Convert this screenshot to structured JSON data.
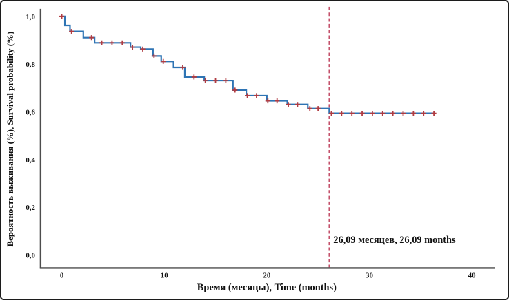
{
  "chart_data": {
    "type": "line",
    "subtype": "kaplan-meier-step",
    "title": "",
    "xlabel": "Время (месяцы), Time (months)",
    "ylabel": "Вероятность выживания (%), Survival probability (%)",
    "xlim": [
      -2.1,
      42.2
    ],
    "ylim": [
      0.0,
      1.05
    ],
    "grid": false,
    "legend": "none",
    "x_ticks": [
      {
        "value": 0,
        "label": "0"
      },
      {
        "value": 10,
        "label": "10"
      },
      {
        "value": 20,
        "label": "20"
      },
      {
        "value": 30,
        "label": "30"
      },
      {
        "value": 40,
        "label": "40"
      }
    ],
    "y_ticks": [
      {
        "value": 0.0,
        "label": "0,0"
      },
      {
        "value": 0.2,
        "label": "0,2"
      },
      {
        "value": 0.4,
        "label": "0,4"
      },
      {
        "value": 0.6,
        "label": "0,6"
      },
      {
        "value": 0.8,
        "label": "0,8"
      },
      {
        "value": 1.0,
        "label": "1,0"
      }
    ],
    "survival_steps": [
      {
        "t": 0.0,
        "p": 1.0
      },
      {
        "t": 0.3,
        "p": 0.962
      },
      {
        "t": 0.8,
        "p": 0.937
      },
      {
        "t": 2.1,
        "p": 0.911
      },
      {
        "t": 3.2,
        "p": 0.889
      },
      {
        "t": 6.7,
        "p": 0.871
      },
      {
        "t": 7.7,
        "p": 0.863
      },
      {
        "t": 8.9,
        "p": 0.834
      },
      {
        "t": 9.7,
        "p": 0.811
      },
      {
        "t": 10.9,
        "p": 0.786
      },
      {
        "t": 12.0,
        "p": 0.746
      },
      {
        "t": 13.9,
        "p": 0.731
      },
      {
        "t": 16.7,
        "p": 0.691
      },
      {
        "t": 18.0,
        "p": 0.668
      },
      {
        "t": 20.0,
        "p": 0.646
      },
      {
        "t": 22.0,
        "p": 0.631
      },
      {
        "t": 24.0,
        "p": 0.614
      },
      {
        "t": 26.09,
        "p": 0.594
      }
    ],
    "end_t": 36.4,
    "censored": [
      {
        "t": 0.0,
        "p": 1.0
      },
      {
        "t": 0.95,
        "p": 0.937
      },
      {
        "t": 2.9,
        "p": 0.911
      },
      {
        "t": 3.9,
        "p": 0.889
      },
      {
        "t": 4.9,
        "p": 0.889
      },
      {
        "t": 5.9,
        "p": 0.889
      },
      {
        "t": 6.9,
        "p": 0.871
      },
      {
        "t": 7.9,
        "p": 0.863
      },
      {
        "t": 9.0,
        "p": 0.834
      },
      {
        "t": 9.9,
        "p": 0.811
      },
      {
        "t": 11.8,
        "p": 0.786
      },
      {
        "t": 12.9,
        "p": 0.746
      },
      {
        "t": 14.0,
        "p": 0.731
      },
      {
        "t": 15.0,
        "p": 0.731
      },
      {
        "t": 16.0,
        "p": 0.731
      },
      {
        "t": 16.9,
        "p": 0.691
      },
      {
        "t": 18.1,
        "p": 0.668
      },
      {
        "t": 19.0,
        "p": 0.668
      },
      {
        "t": 20.1,
        "p": 0.646
      },
      {
        "t": 21.0,
        "p": 0.646
      },
      {
        "t": 22.1,
        "p": 0.631
      },
      {
        "t": 23.0,
        "p": 0.631
      },
      {
        "t": 24.2,
        "p": 0.614
      },
      {
        "t": 25.0,
        "p": 0.614
      },
      {
        "t": 26.3,
        "p": 0.594
      },
      {
        "t": 27.3,
        "p": 0.594
      },
      {
        "t": 28.3,
        "p": 0.594
      },
      {
        "t": 29.3,
        "p": 0.594
      },
      {
        "t": 30.3,
        "p": 0.594
      },
      {
        "t": 31.3,
        "p": 0.594
      },
      {
        "t": 32.3,
        "p": 0.594
      },
      {
        "t": 33.3,
        "p": 0.594
      },
      {
        "t": 34.3,
        "p": 0.594
      },
      {
        "t": 35.3,
        "p": 0.594
      },
      {
        "t": 36.3,
        "p": 0.594
      }
    ],
    "vline": {
      "t": 26.09,
      "label": "26,09 месяцев, 26,09 months"
    },
    "colors": {
      "curve": "#2e74b4",
      "censor_mark": "#b13c42",
      "vline": "#c4516b",
      "axis": "#4d4d4d",
      "text": "#111111"
    }
  }
}
